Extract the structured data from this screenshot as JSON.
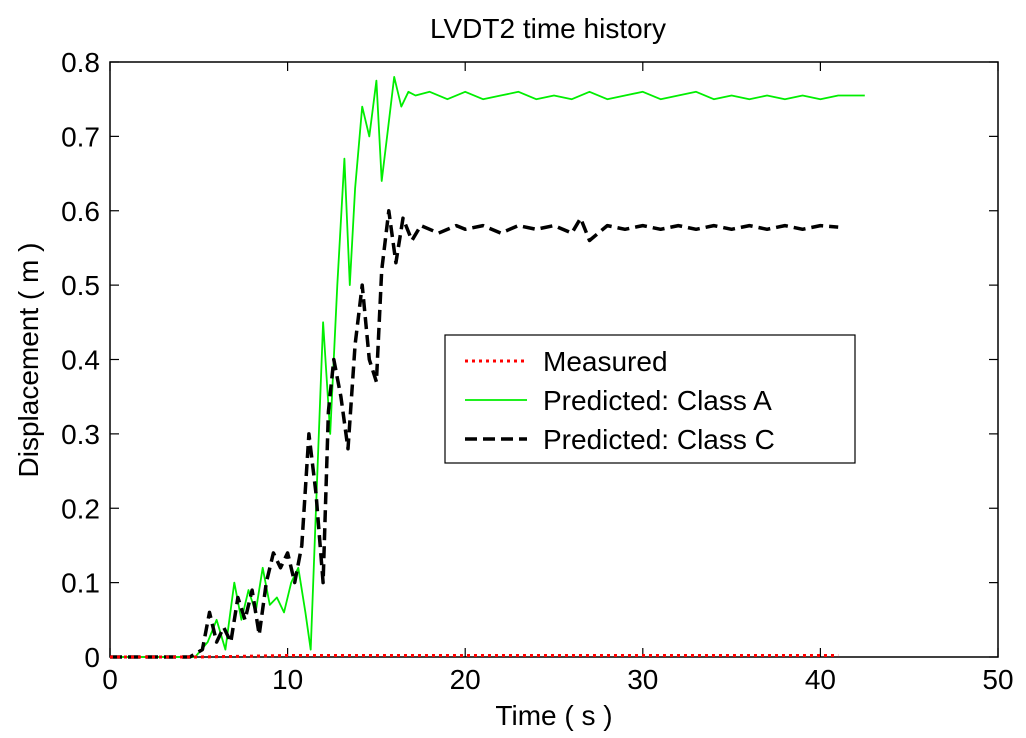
{
  "chart_data": {
    "type": "line",
    "title": "LVDT2 time history",
    "xlabel": "Time ( s )",
    "ylabel": "Displacement ( m )",
    "xlim": [
      0,
      50
    ],
    "ylim": [
      0,
      0.8
    ],
    "xticks": [
      0,
      10,
      20,
      30,
      40,
      50
    ],
    "yticks": [
      0,
      0.1,
      0.2,
      0.3,
      0.4,
      0.5,
      0.6,
      0.7,
      0.8
    ],
    "xtick_labels": [
      "0",
      "10",
      "20",
      "30",
      "40",
      "50"
    ],
    "ytick_labels": [
      "0",
      "0.1",
      "0.2",
      "0.3",
      "0.4",
      "0.5",
      "0.6",
      "0.7",
      "0.8"
    ],
    "grid": false,
    "legend_position": "center-right",
    "series": [
      {
        "name": "Measured",
        "color": "#ff0000",
        "style": "dotted",
        "x": [
          0,
          5,
          10,
          15,
          20,
          25,
          30,
          35,
          40,
          41
        ],
        "y": [
          0,
          0,
          0.002,
          0.002,
          0.002,
          0.002,
          0.002,
          0.002,
          0.002,
          0.002
        ]
      },
      {
        "name": "Predicted: Class A",
        "color": "#00ee00",
        "style": "solid",
        "x": [
          0,
          4.8,
          5.5,
          6.0,
          6.5,
          7.0,
          7.4,
          7.8,
          8.2,
          8.6,
          9.0,
          9.4,
          9.8,
          10.2,
          10.6,
          11.0,
          11.3,
          11.6,
          12.0,
          12.4,
          12.8,
          13.2,
          13.5,
          13.8,
          14.2,
          14.6,
          15.0,
          15.3,
          15.6,
          16.0,
          16.4,
          16.8,
          17.2,
          18,
          19,
          20,
          21,
          22,
          23,
          24,
          25,
          26,
          27,
          28,
          29,
          30,
          31,
          32,
          33,
          34,
          35,
          36,
          37,
          38,
          39,
          40,
          41,
          42,
          42.5
        ],
        "y": [
          0,
          0,
          0.02,
          0.05,
          0.01,
          0.1,
          0.05,
          0.09,
          0.06,
          0.12,
          0.07,
          0.08,
          0.06,
          0.1,
          0.12,
          0.06,
          0.01,
          0.2,
          0.45,
          0.3,
          0.5,
          0.67,
          0.5,
          0.63,
          0.74,
          0.7,
          0.775,
          0.64,
          0.7,
          0.78,
          0.74,
          0.76,
          0.755,
          0.76,
          0.75,
          0.76,
          0.75,
          0.755,
          0.76,
          0.75,
          0.755,
          0.75,
          0.76,
          0.75,
          0.755,
          0.76,
          0.75,
          0.755,
          0.76,
          0.75,
          0.755,
          0.75,
          0.755,
          0.75,
          0.755,
          0.75,
          0.755,
          0.755,
          0.755
        ]
      },
      {
        "name": "Predicted: Class C",
        "color": "#000000",
        "style": "dashed",
        "x": [
          0,
          4.5,
          5.2,
          5.6,
          6.0,
          6.4,
          6.8,
          7.2,
          7.6,
          8.0,
          8.4,
          8.8,
          9.2,
          9.6,
          10.0,
          10.4,
          10.8,
          11.2,
          11.6,
          12.0,
          12.3,
          12.6,
          13.0,
          13.4,
          13.8,
          14.2,
          14.6,
          15.0,
          15.3,
          15.7,
          16.1,
          16.5,
          17.0,
          17.5,
          18.5,
          19.5,
          20,
          21,
          22,
          23,
          24,
          25,
          26,
          26.5,
          27,
          28,
          29,
          30,
          31,
          32,
          33,
          34,
          35,
          36,
          37,
          38,
          39,
          40,
          41
        ],
        "y": [
          0,
          0,
          0.01,
          0.06,
          0.02,
          0.04,
          0.02,
          0.08,
          0.05,
          0.09,
          0.03,
          0.1,
          0.14,
          0.12,
          0.14,
          0.1,
          0.15,
          0.3,
          0.22,
          0.1,
          0.33,
          0.4,
          0.35,
          0.28,
          0.42,
          0.5,
          0.4,
          0.37,
          0.52,
          0.6,
          0.53,
          0.59,
          0.56,
          0.58,
          0.57,
          0.58,
          0.575,
          0.58,
          0.57,
          0.58,
          0.575,
          0.58,
          0.57,
          0.59,
          0.56,
          0.58,
          0.575,
          0.58,
          0.575,
          0.58,
          0.575,
          0.58,
          0.575,
          0.58,
          0.575,
          0.58,
          0.575,
          0.58,
          0.578
        ]
      }
    ]
  }
}
